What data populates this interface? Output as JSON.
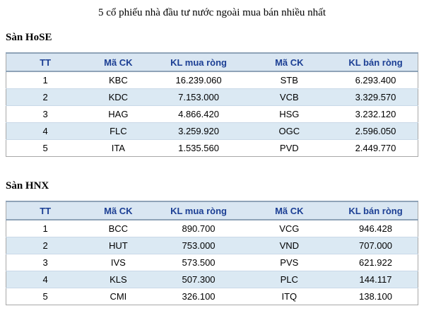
{
  "title": "5 cổ phiếu nhà đầu tư nước ngoài mua bán nhiều nhất",
  "sections": [
    {
      "heading": "Sàn HoSE",
      "columns": [
        "TT",
        "Mã CK",
        "KL mua ròng",
        "Mã CK",
        "KL bán ròng"
      ],
      "rows": [
        [
          "1",
          "KBC",
          "16.239.060",
          "STB",
          "6.293.400"
        ],
        [
          "2",
          "KDC",
          "7.153.000",
          "VCB",
          "3.329.570"
        ],
        [
          "3",
          "HAG",
          "4.866.420",
          "HSG",
          "3.232.120"
        ],
        [
          "4",
          "FLC",
          "3.259.920",
          "OGC",
          "2.596.050"
        ],
        [
          "5",
          "ITA",
          "1.535.560",
          "PVD",
          "2.449.770"
        ]
      ]
    },
    {
      "heading": "Sàn HNX",
      "columns": [
        "TT",
        "Mã CK",
        "KL mua ròng",
        "Mã CK",
        "KL bán ròng"
      ],
      "rows": [
        [
          "1",
          "BCC",
          "890.700",
          "VCG",
          "946.428"
        ],
        [
          "2",
          "HUT",
          "753.000",
          "VND",
          "707.000"
        ],
        [
          "3",
          "IVS",
          "573.500",
          "PVS",
          "621.922"
        ],
        [
          "4",
          "KLS",
          "507.300",
          "PLC",
          "144.117"
        ],
        [
          "5",
          "CMI",
          "326.100",
          "ITQ",
          "138.100"
        ]
      ]
    }
  ],
  "colors": {
    "header_bg": "#d9e6f2",
    "header_text": "#1c3f94",
    "header_border": "#8fa3b8",
    "row_alt_bg": "#dbe9f3",
    "row_divider": "#c9d9e8",
    "outer_border": "#a8a8a8",
    "body_text": "#000000"
  }
}
